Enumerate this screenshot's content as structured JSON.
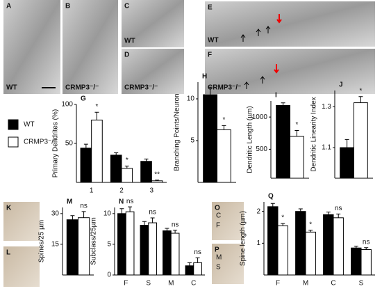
{
  "images": [
    {
      "label": "A",
      "caption": "WT"
    },
    {
      "label": "B",
      "caption": "CRMP3⁻/⁻"
    },
    {
      "label": "C",
      "caption": "WT"
    },
    {
      "label": "D",
      "caption": "CRMP3⁻/⁻"
    },
    {
      "label": "E",
      "caption": "WT"
    },
    {
      "label": "F",
      "caption": "CRMP3⁻/⁻"
    },
    {
      "label": "K"
    },
    {
      "label": "L"
    },
    {
      "label": "O",
      "marks": [
        "C",
        "F"
      ]
    },
    {
      "label": "P",
      "marks": [
        "M",
        "S"
      ]
    }
  ],
  "chart_data": [
    {
      "type": "bar",
      "label": "G",
      "ylabel": "Primary Dendrites (%)",
      "categories": [
        "1",
        "2",
        "3"
      ],
      "series": [
        {
          "name": "WT",
          "color": "#000000",
          "values": [
            44,
            35,
            27
          ],
          "errors": [
            5,
            3,
            3
          ]
        },
        {
          "name": "CRMP3⁻/⁻",
          "color": "#ffffff",
          "values": [
            80,
            18,
            2
          ],
          "errors": [
            10,
            3,
            1
          ],
          "labels": [
            "*",
            "*",
            "**"
          ]
        }
      ],
      "ylim": [
        0,
        100
      ],
      "yticks": [
        50,
        100
      ]
    },
    {
      "type": "bar",
      "label": "H",
      "ylabel": "Branching Points/Neuron",
      "series": [
        {
          "color": "#000000",
          "values": [
            10.5
          ],
          "errors": [
            0.9
          ]
        },
        {
          "color": "#ffffff",
          "values": [
            6.3
          ],
          "errors": [
            0.5
          ],
          "labels": [
            "*"
          ]
        }
      ],
      "ylim": [
        0,
        12
      ],
      "yticks": [
        5,
        10
      ]
    },
    {
      "type": "bar",
      "label": "I",
      "ylabel": "Dendritic Length (µm)",
      "series": [
        {
          "color": "#000000",
          "values": [
            1180
          ],
          "errors": [
            40
          ]
        },
        {
          "color": "#ffffff",
          "values": [
            700
          ],
          "errors": [
            90
          ],
          "labels": [
            "*"
          ]
        }
      ],
      "ylim": [
        50,
        1250
      ],
      "yticks": [
        500,
        1000
      ]
    },
    {
      "type": "bar",
      "label": "J",
      "ylabel": "Dendritic Linearity Index",
      "series": [
        {
          "color": "#000000",
          "values": [
            1.1
          ],
          "errors": [
            0.04
          ]
        },
        {
          "color": "#ffffff",
          "values": [
            1.32
          ],
          "errors": [
            0.03
          ],
          "labels": [
            "*"
          ]
        }
      ],
      "ylim": [
        0.95,
        1.38
      ],
      "yticks": [
        1.1,
        1.3
      ]
    },
    {
      "type": "bar",
      "label": "M",
      "ylabel": "Spines/25 µm",
      "series": [
        {
          "color": "#000000",
          "values": [
            27
          ],
          "errors": [
            2
          ]
        },
        {
          "color": "#ffffff",
          "values": [
            28
          ],
          "errors": [
            3
          ],
          "labels": [
            "ns"
          ]
        }
      ],
      "ylim": [
        0,
        33
      ],
      "yticks": [
        15,
        30
      ]
    },
    {
      "type": "bar",
      "label": "N",
      "ylabel": "Subclass/25µm",
      "categories": [
        "F",
        "S",
        "M",
        "C"
      ],
      "series": [
        {
          "color": "#000000",
          "values": [
            10,
            8.1,
            7.2,
            1.5
          ],
          "errors": [
            0.8,
            0.6,
            0.4,
            0.5
          ]
        },
        {
          "color": "#ffffff",
          "values": [
            10.3,
            8.5,
            6.8,
            2.0
          ],
          "errors": [
            0.8,
            0.8,
            0.5,
            0.8
          ],
          "labels": [
            "ns",
            "ns",
            "ns",
            "ns"
          ]
        }
      ],
      "ylim": [
        0,
        11
      ],
      "yticks": [
        0,
        5,
        10
      ]
    },
    {
      "type": "bar",
      "label": "Q",
      "ylabel": "Spine length (µm)",
      "categories": [
        "F",
        "M",
        "C",
        "S"
      ],
      "series": [
        {
          "color": "#000000",
          "values": [
            2.15,
            2.0,
            1.9,
            0.85
          ],
          "errors": [
            0.1,
            0.08,
            0.08,
            0.06
          ]
        },
        {
          "color": "#ffffff",
          "values": [
            1.55,
            1.35,
            1.8,
            0.8
          ],
          "errors": [
            0.07,
            0.06,
            0.12,
            0.06
          ],
          "labels": [
            "*",
            "*",
            "ns",
            "ns"
          ]
        }
      ],
      "ylim": [
        0,
        2.3
      ],
      "yticks": [
        1,
        2
      ]
    }
  ]
}
